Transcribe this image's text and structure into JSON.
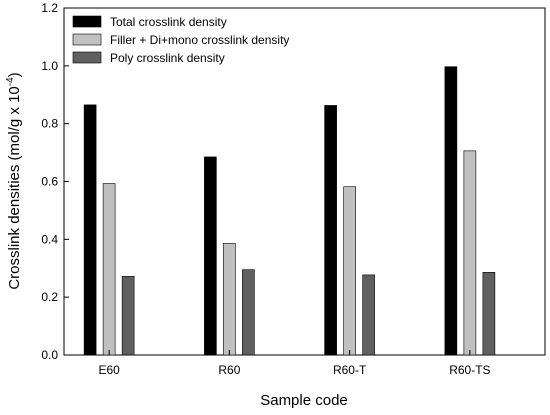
{
  "chart_data": {
    "type": "bar",
    "title": "",
    "xlabel": "Sample code",
    "ylabel_main": "Crosslink densities (mol/g x 10",
    "ylabel_sup": "-4",
    "ylabel_end": ")",
    "ylim": [
      0.0,
      1.2
    ],
    "yticks": [
      "0.0",
      "0.2",
      "0.4",
      "0.6",
      "0.8",
      "1.0",
      "1.2"
    ],
    "grid": false,
    "legend_position": "top-left",
    "categories": [
      "E60",
      "R60",
      "R60-T",
      "R60-TS"
    ],
    "series": [
      {
        "name": "Total crosslink density",
        "color": "#000000",
        "values": [
          0.865,
          0.685,
          0.863,
          0.997
        ]
      },
      {
        "name": "Filler + Di+mono crosslink density",
        "color": "#c0c0c0",
        "values": [
          0.593,
          0.386,
          0.582,
          0.706
        ]
      },
      {
        "name": "Poly crosslink density",
        "color": "#606060",
        "values": [
          0.272,
          0.295,
          0.277,
          0.286
        ]
      }
    ]
  }
}
